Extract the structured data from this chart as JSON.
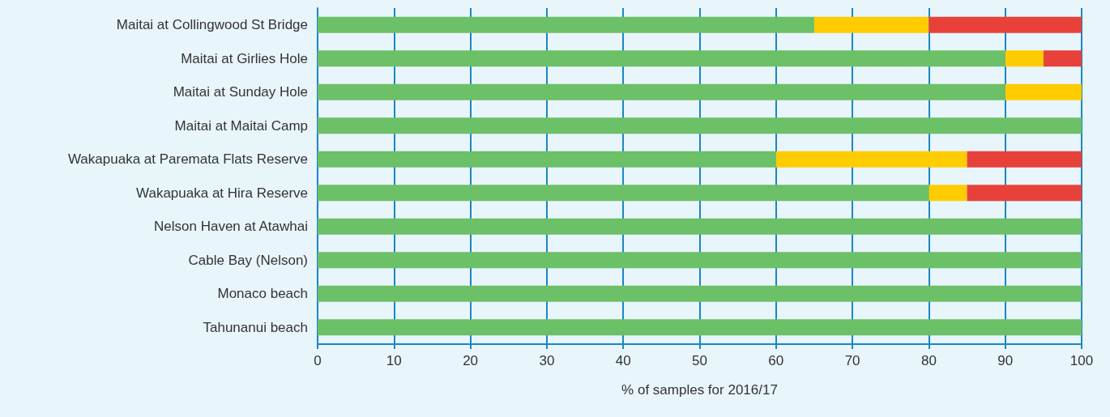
{
  "chart_data": {
    "type": "bar",
    "orientation": "horizontal",
    "stacked": true,
    "xlabel": "% of samples for 2016/17",
    "categories": [
      "Maitai at Collingwood St Bridge",
      "Maitai at Girlies Hole",
      "Maitai at Sunday Hole",
      "Maitai at Maitai Camp",
      "Wakapuaka at Paremata Flats Reserve",
      "Wakapuaka at Hira Reserve",
      "Nelson Haven at Atawhai",
      "Cable Bay (Nelson)",
      "Monaco beach",
      "Tahunanui beach"
    ],
    "series": [
      {
        "color": "#6cc067",
        "values": [
          65,
          90,
          90,
          100,
          60,
          80,
          100,
          100,
          100,
          100
        ]
      },
      {
        "color": "#ffcc00",
        "values": [
          15,
          5,
          10,
          0,
          25,
          5,
          0,
          0,
          0,
          0
        ]
      },
      {
        "color": "#e8413a",
        "values": [
          20,
          5,
          0,
          0,
          15,
          15,
          0,
          0,
          0,
          0
        ]
      }
    ],
    "xlim": [
      0,
      100
    ],
    "xticks": [
      0,
      10,
      20,
      30,
      40,
      50,
      60,
      70,
      80,
      90,
      100
    ],
    "grid": "x"
  }
}
